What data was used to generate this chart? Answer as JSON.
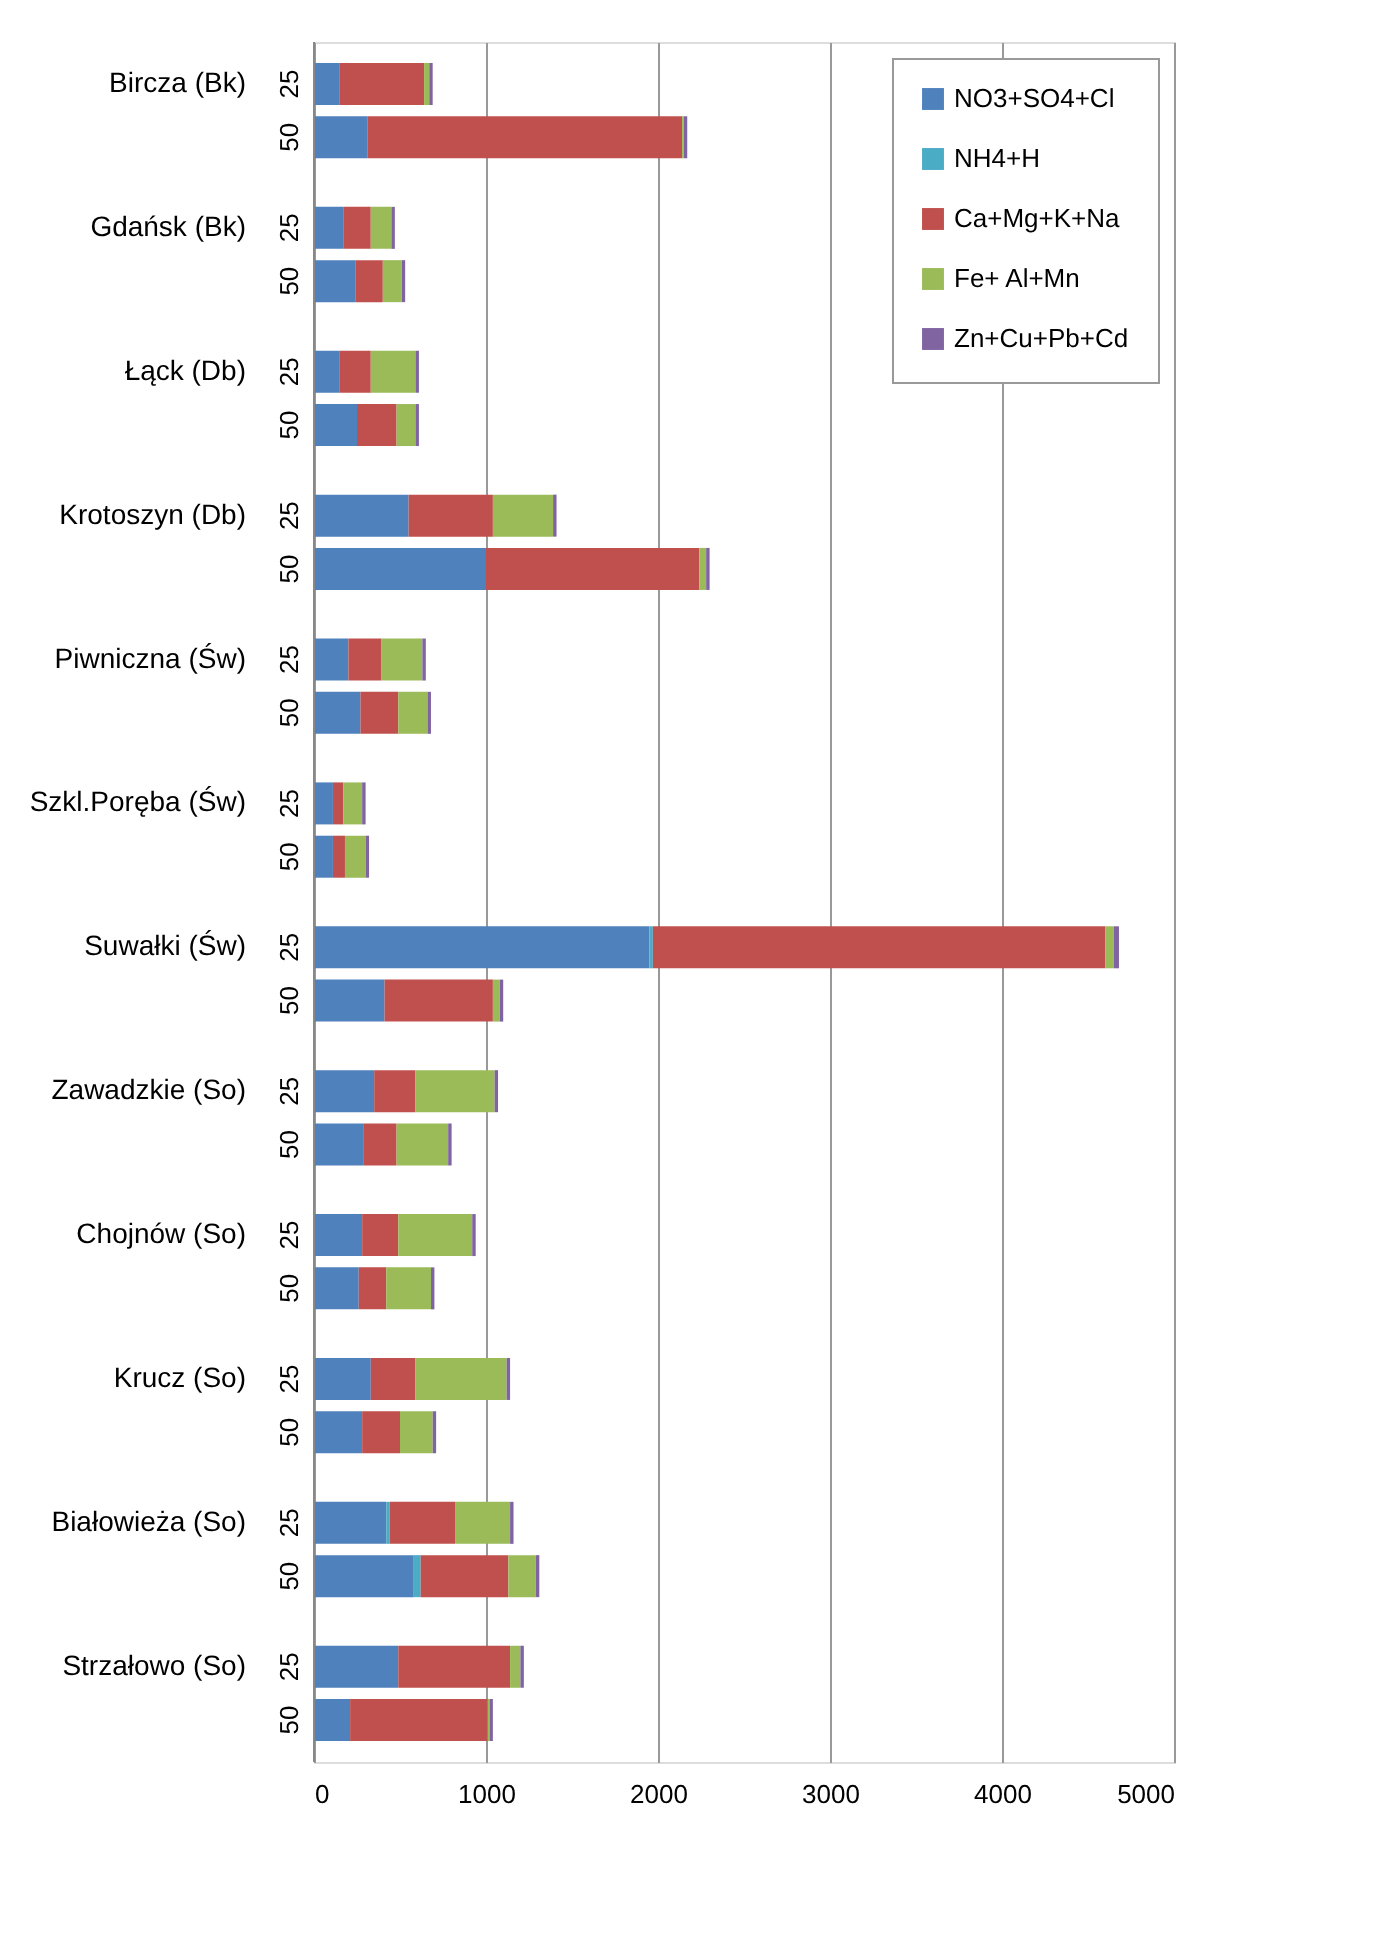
{
  "chart_data": {
    "type": "bar",
    "orientation": "horizontal",
    "stacked": true,
    "categories": [
      "25",
      "50",
      "25",
      "50",
      "25",
      "50",
      "25",
      "50",
      "25",
      "50",
      "25",
      "50",
      "25",
      "50",
      "25",
      "50",
      "25",
      "50",
      "25",
      "50",
      "25",
      "50",
      "25",
      "50"
    ],
    "annotations": [
      "Bircza (Bk)",
      "Gdańsk (Bk)",
      "Łąck (Db)",
      "Krotoszyn (Db)",
      "Piwniczna (Św)",
      "Szkl.Poręba  (Św)",
      "Suwałki (Św)",
      "Zawadzkie (So)",
      "Chojnów (So)",
      "Krucz (So)",
      "Białowieża (So)",
      "Strzałowo (So)"
    ],
    "series": [
      {
        "name": "NO3+SO4+Cl",
        "color": "#4f81bd",
        "values": [
          150,
          310,
          170,
          240,
          150,
          250,
          550,
          1000,
          200,
          270,
          110,
          110,
          1950,
          410,
          350,
          290,
          280,
          260,
          330,
          280,
          420,
          580,
          490,
          210
        ]
      },
      {
        "name": "NH4+H",
        "color": "#4bacc6",
        "values": [
          0,
          0,
          0,
          0,
          0,
          0,
          0,
          0,
          0,
          0,
          0,
          0,
          20,
          0,
          0,
          0,
          0,
          0,
          0,
          0,
          20,
          40,
          0,
          0
        ]
      },
      {
        "name": "Ca+Mg+K+Na",
        "color": "#c0504d",
        "values": [
          490,
          1830,
          160,
          160,
          180,
          230,
          490,
          1240,
          190,
          220,
          60,
          70,
          2630,
          630,
          240,
          190,
          210,
          160,
          260,
          220,
          380,
          510,
          650,
          800
        ]
      },
      {
        "name": "Fe+ Al+Mn",
        "color": "#9bbb59",
        "values": [
          30,
          10,
          120,
          110,
          260,
          110,
          350,
          40,
          240,
          170,
          110,
          120,
          50,
          40,
          460,
          300,
          430,
          260,
          530,
          190,
          320,
          160,
          60,
          10
        ]
      },
      {
        "name": "Zn+Cu+Pb+Cd",
        "color": "#8064a2",
        "values": [
          20,
          20,
          20,
          20,
          20,
          20,
          20,
          20,
          20,
          20,
          20,
          20,
          30,
          20,
          20,
          20,
          20,
          20,
          20,
          20,
          20,
          20,
          20,
          20
        ]
      }
    ],
    "xlim": [
      0,
      5000
    ],
    "xticks": [
      0,
      1000,
      2000,
      3000,
      4000,
      5000
    ],
    "grid": "x",
    "legend": "top right"
  }
}
